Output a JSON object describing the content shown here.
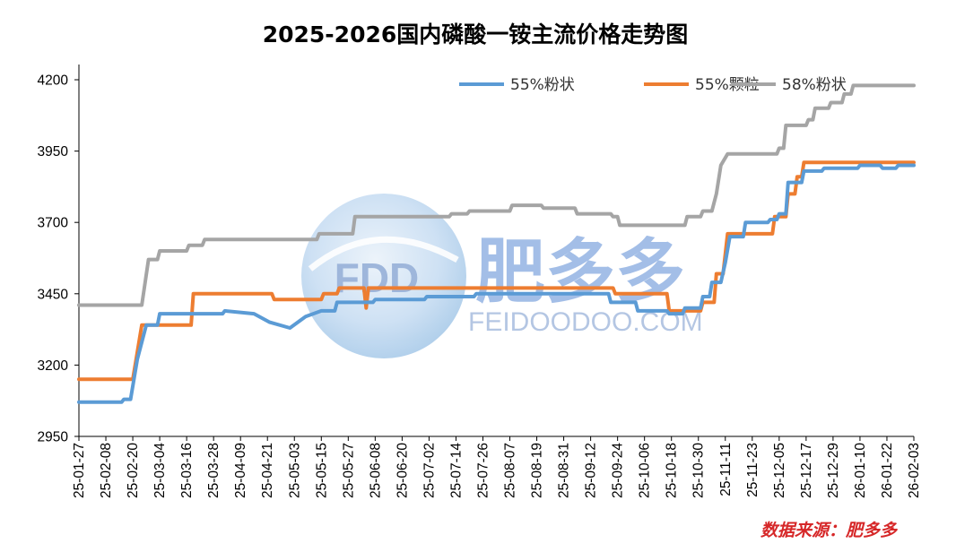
{
  "colors": {
    "series_blue": "#5b9bd5",
    "series_orange": "#ed7d31",
    "series_grey": "#a5a5a5",
    "source_text": "#d62728",
    "watermark": "#5b8ad6",
    "axis": "#000000"
  },
  "chart_data": {
    "type": "line",
    "title": "2025-2026国内磷酸一铵主流价格走势图",
    "xlabel": "",
    "ylabel": "",
    "ylim": [
      2950,
      4200
    ],
    "yticks": [
      2950,
      3200,
      3450,
      3700,
      3950,
      4200
    ],
    "grid": false,
    "legend_position": "top-right",
    "x_start": "2025-01-27",
    "x_end": "2026-02-03",
    "xtick_labels": [
      "25-01-27",
      "25-02-08",
      "25-02-20",
      "25-03-04",
      "25-03-16",
      "25-03-28",
      "25-04-09",
      "25-04-21",
      "25-05-03",
      "25-05-15",
      "25-05-27",
      "25-06-08",
      "25-06-20",
      "25-07-02",
      "25-07-14",
      "25-07-26",
      "25-08-07",
      "25-08-19",
      "25-08-31",
      "25-09-12",
      "25-09-24",
      "25-10-06",
      "25-10-18",
      "25-10-30",
      "25-11-11",
      "25-11-23",
      "25-12-05",
      "25-12-17",
      "25-12-29",
      "26-01-10",
      "26-01-22",
      "26-02-03"
    ],
    "series": [
      {
        "name": "58%粉状",
        "color": "#a5a5a5",
        "points": [
          [
            "2025-01-27",
            3410
          ],
          [
            "2025-02-24",
            3410
          ],
          [
            "2025-02-27",
            3570
          ],
          [
            "2025-03-03",
            3570
          ],
          [
            "2025-03-04",
            3600
          ],
          [
            "2025-03-16",
            3600
          ],
          [
            "2025-03-17",
            3620
          ],
          [
            "2025-03-23",
            3620
          ],
          [
            "2025-03-24",
            3640
          ],
          [
            "2025-05-13",
            3640
          ],
          [
            "2025-05-14",
            3660
          ],
          [
            "2025-05-29",
            3660
          ],
          [
            "2025-05-30",
            3720
          ],
          [
            "2025-07-11",
            3720
          ],
          [
            "2025-07-12",
            3730
          ],
          [
            "2025-07-19",
            3730
          ],
          [
            "2025-07-20",
            3740
          ],
          [
            "2025-08-07",
            3740
          ],
          [
            "2025-08-08",
            3760
          ],
          [
            "2025-08-21",
            3760
          ],
          [
            "2025-08-22",
            3750
          ],
          [
            "2025-09-05",
            3750
          ],
          [
            "2025-09-06",
            3730
          ],
          [
            "2025-09-21",
            3730
          ],
          [
            "2025-09-22",
            3720
          ],
          [
            "2025-09-24",
            3720
          ],
          [
            "2025-09-25",
            3690
          ],
          [
            "2025-10-24",
            3690
          ],
          [
            "2025-10-25",
            3720
          ],
          [
            "2025-10-31",
            3720
          ],
          [
            "2025-11-01",
            3740
          ],
          [
            "2025-11-05",
            3740
          ],
          [
            "2025-11-07",
            3800
          ],
          [
            "2025-11-09",
            3900
          ],
          [
            "2025-11-12",
            3940
          ],
          [
            "2025-12-04",
            3940
          ],
          [
            "2025-12-05",
            3960
          ],
          [
            "2025-12-07",
            3960
          ],
          [
            "2025-12-08",
            4040
          ],
          [
            "2025-12-17",
            4040
          ],
          [
            "2025-12-18",
            4060
          ],
          [
            "2025-12-20",
            4060
          ],
          [
            "2025-12-21",
            4100
          ],
          [
            "2025-12-27",
            4100
          ],
          [
            "2025-12-28",
            4120
          ],
          [
            "2026-01-02",
            4120
          ],
          [
            "2026-01-03",
            4150
          ],
          [
            "2026-01-06",
            4150
          ],
          [
            "2026-01-07",
            4180
          ],
          [
            "2026-02-03",
            4180
          ]
        ]
      },
      {
        "name": "55%颗粒",
        "color": "#ed7d31",
        "points": [
          [
            "2025-01-27",
            3150
          ],
          [
            "2025-02-20",
            3150
          ],
          [
            "2025-02-24",
            3340
          ],
          [
            "2025-03-18",
            3340
          ],
          [
            "2025-03-19",
            3450
          ],
          [
            "2025-04-23",
            3450
          ],
          [
            "2025-04-24",
            3430
          ],
          [
            "2025-05-15",
            3430
          ],
          [
            "2025-05-16",
            3450
          ],
          [
            "2025-05-22",
            3450
          ],
          [
            "2025-05-23",
            3470
          ],
          [
            "2025-06-03",
            3470
          ],
          [
            "2025-06-04",
            3400
          ],
          [
            "2025-06-05",
            3470
          ],
          [
            "2025-09-22",
            3470
          ],
          [
            "2025-09-23",
            3450
          ],
          [
            "2025-10-16",
            3450
          ],
          [
            "2025-10-17",
            3390
          ],
          [
            "2025-10-31",
            3390
          ],
          [
            "2025-11-01",
            3420
          ],
          [
            "2025-11-06",
            3420
          ],
          [
            "2025-11-07",
            3520
          ],
          [
            "2025-11-10",
            3520
          ],
          [
            "2025-11-12",
            3660
          ],
          [
            "2025-12-02",
            3660
          ],
          [
            "2025-12-03",
            3720
          ],
          [
            "2025-12-08",
            3720
          ],
          [
            "2025-12-09",
            3800
          ],
          [
            "2025-12-12",
            3800
          ],
          [
            "2025-12-13",
            3860
          ],
          [
            "2025-12-15",
            3860
          ],
          [
            "2025-12-16",
            3910
          ],
          [
            "2026-02-03",
            3910
          ]
        ]
      },
      {
        "name": "55%粉状",
        "color": "#5b9bd5",
        "points": [
          [
            "2025-01-27",
            3070
          ],
          [
            "2025-02-15",
            3070
          ],
          [
            "2025-02-16",
            3080
          ],
          [
            "2025-02-19",
            3080
          ],
          [
            "2025-02-22",
            3220
          ],
          [
            "2025-02-26",
            3340
          ],
          [
            "2025-03-03",
            3340
          ],
          [
            "2025-03-04",
            3380
          ],
          [
            "2025-04-01",
            3380
          ],
          [
            "2025-04-02",
            3390
          ],
          [
            "2025-04-15",
            3380
          ],
          [
            "2025-04-22",
            3350
          ],
          [
            "2025-05-01",
            3330
          ],
          [
            "2025-05-08",
            3370
          ],
          [
            "2025-05-15",
            3390
          ],
          [
            "2025-05-21",
            3390
          ],
          [
            "2025-05-22",
            3420
          ],
          [
            "2025-06-07",
            3420
          ],
          [
            "2025-06-08",
            3430
          ],
          [
            "2025-06-30",
            3430
          ],
          [
            "2025-07-01",
            3440
          ],
          [
            "2025-07-22",
            3440
          ],
          [
            "2025-07-23",
            3450
          ],
          [
            "2025-09-20",
            3450
          ],
          [
            "2025-09-21",
            3420
          ],
          [
            "2025-10-02",
            3420
          ],
          [
            "2025-10-03",
            3390
          ],
          [
            "2025-10-16",
            3390
          ],
          [
            "2025-10-17",
            3380
          ],
          [
            "2025-10-23",
            3380
          ],
          [
            "2025-10-24",
            3400
          ],
          [
            "2025-10-31",
            3400
          ],
          [
            "2025-11-01",
            3440
          ],
          [
            "2025-11-04",
            3440
          ],
          [
            "2025-11-05",
            3490
          ],
          [
            "2025-11-09",
            3490
          ],
          [
            "2025-11-11",
            3560
          ],
          [
            "2025-11-13",
            3650
          ],
          [
            "2025-11-19",
            3650
          ],
          [
            "2025-11-20",
            3700
          ],
          [
            "2025-11-30",
            3700
          ],
          [
            "2025-12-01",
            3710
          ],
          [
            "2025-12-04",
            3710
          ],
          [
            "2025-12-05",
            3730
          ],
          [
            "2025-12-08",
            3730
          ],
          [
            "2025-12-09",
            3840
          ],
          [
            "2025-12-15",
            3840
          ],
          [
            "2025-12-16",
            3880
          ],
          [
            "2025-12-24",
            3880
          ],
          [
            "2025-12-25",
            3890
          ],
          [
            "2026-01-09",
            3890
          ],
          [
            "2026-01-10",
            3900
          ],
          [
            "2026-01-19",
            3900
          ],
          [
            "2026-01-20",
            3890
          ],
          [
            "2026-01-26",
            3890
          ],
          [
            "2026-01-27",
            3900
          ],
          [
            "2026-02-03",
            3900
          ]
        ]
      }
    ],
    "legend_order": [
      "55%粉状",
      "55%颗粒",
      "58%粉状"
    ]
  },
  "watermark": {
    "logo_text": "FDD",
    "brand": "肥多多",
    "url": "FEIDOODOO.COM"
  },
  "source": "数据来源：肥多多"
}
